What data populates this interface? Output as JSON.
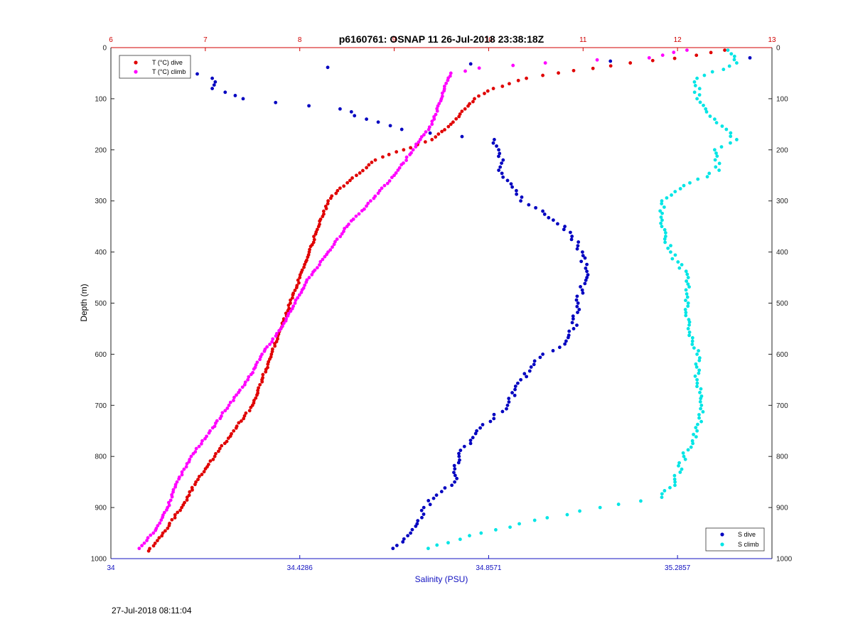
{
  "chart_data": {
    "type": "scatter",
    "title": "p6160761: OSNAP 11 26-Jul-2018 23:38:18Z",
    "ylabel": "Depth (m)",
    "xlabel_bottom": "Salinity (PSU)",
    "xlabel_top": "",
    "ylim": [
      0,
      1000
    ],
    "y_reversed": true,
    "x_top_range": [
      6,
      13
    ],
    "x_bottom_range": [
      34,
      35.5
    ],
    "y_ticks": [
      "0",
      "100",
      "200",
      "300",
      "400",
      "500",
      "600",
      "700",
      "800",
      "900",
      "1000"
    ],
    "x_top_ticks": [
      "6",
      "7",
      "8",
      "9",
      "10",
      "11",
      "12",
      "13"
    ],
    "x_bottom_ticks": [
      "34",
      "34.4286",
      "34.8571",
      "35.2857"
    ],
    "grid": true,
    "colors": {
      "t_dive": "#e00000",
      "t_climb": "#ff00ff",
      "s_dive": "#0000c0",
      "s_climb": "#00e5e5",
      "top_axis": "#d00000",
      "bottom_axis": "#1010c0"
    },
    "legend_top": {
      "position": "top-left",
      "entries": [
        "T (°C) dive",
        "T (°C) climb"
      ]
    },
    "legend_bottom": {
      "position": "bottom-right",
      "entries": [
        "S dive",
        "S climb"
      ]
    },
    "series": [
      {
        "name": "T (°C) dive",
        "axis": "top",
        "y": [
          5,
          15,
          30,
          45,
          60,
          80,
          100,
          120,
          150,
          180,
          200,
          220,
          250,
          280,
          300,
          350,
          400,
          450,
          500,
          550,
          600,
          650,
          700,
          750,
          800,
          850,
          900,
          950,
          985
        ],
        "values": [
          12.5,
          12.2,
          11.5,
          10.9,
          10.4,
          10.05,
          9.85,
          9.75,
          9.6,
          9.4,
          9.1,
          8.8,
          8.6,
          8.4,
          8.3,
          8.2,
          8.1,
          8.0,
          7.9,
          7.8,
          7.7,
          7.6,
          7.5,
          7.3,
          7.1,
          6.9,
          6.75,
          6.55,
          6.4
        ]
      },
      {
        "name": "T (°C) climb",
        "axis": "top",
        "y": [
          5,
          20,
          30,
          40,
          50,
          70,
          100,
          150,
          200,
          250,
          300,
          350,
          400,
          450,
          500,
          550,
          600,
          650,
          700,
          750,
          800,
          850,
          900,
          950,
          980
        ],
        "values": [
          12.1,
          11.7,
          10.6,
          9.9,
          9.6,
          9.55,
          9.5,
          9.4,
          9.2,
          9.0,
          8.75,
          8.5,
          8.3,
          8.1,
          7.95,
          7.8,
          7.6,
          7.45,
          7.25,
          7.05,
          6.85,
          6.7,
          6.6,
          6.45,
          6.3
        ]
      },
      {
        "name": "S dive",
        "axis": "bottom",
        "y": [
          20,
          45,
          60,
          80,
          100,
          120,
          140,
          160,
          180,
          200,
          220,
          240,
          260,
          280,
          300,
          320,
          350,
          400,
          450,
          500,
          550,
          580,
          600,
          620,
          650,
          700,
          750,
          800,
          850,
          900,
          950,
          980
        ],
        "values": [
          35.45,
          34.17,
          34.23,
          34.23,
          34.3,
          34.52,
          34.58,
          34.66,
          34.87,
          34.88,
          34.89,
          34.88,
          34.9,
          34.92,
          34.93,
          34.98,
          35.03,
          35.07,
          35.08,
          35.06,
          35.05,
          35.03,
          34.98,
          34.96,
          34.93,
          34.9,
          34.83,
          34.79,
          34.78,
          34.71,
          34.68,
          34.64
        ]
      },
      {
        "name": "S climb",
        "axis": "bottom",
        "y": [
          5,
          30,
          60,
          100,
          140,
          180,
          200,
          240,
          270,
          300,
          350,
          400,
          450,
          500,
          550,
          600,
          650,
          700,
          750,
          800,
          850,
          880,
          900,
          920,
          950,
          980
        ],
        "values": [
          35.4,
          35.42,
          35.33,
          35.33,
          35.37,
          35.42,
          35.37,
          35.38,
          35.3,
          35.25,
          35.25,
          35.27,
          35.31,
          35.31,
          35.31,
          35.33,
          35.33,
          35.34,
          35.33,
          35.3,
          35.28,
          35.25,
          35.11,
          34.99,
          34.84,
          34.72
        ]
      }
    ]
  },
  "timestamp": "27-Jul-2018 08:11:04"
}
